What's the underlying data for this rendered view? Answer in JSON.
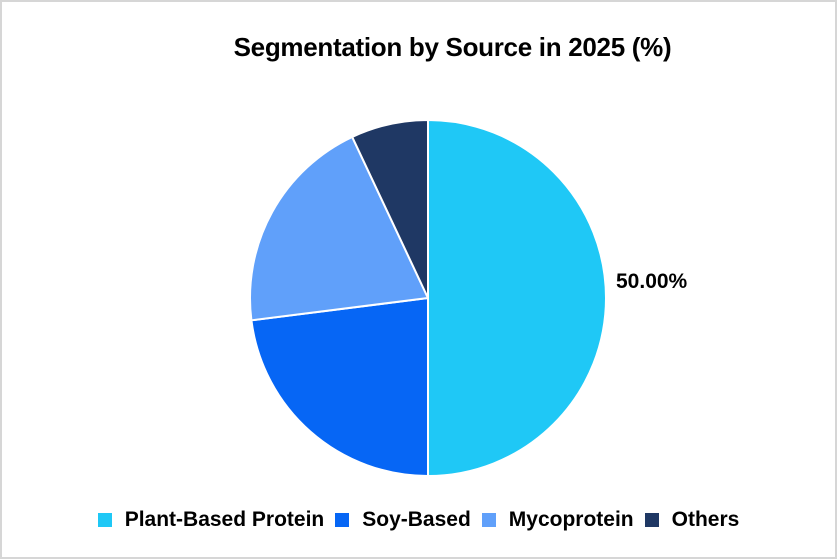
{
  "frame": {
    "background": "#FFFFFF",
    "border_color": "#D6D6D6"
  },
  "chart_data": {
    "type": "pie",
    "title": "Segmentation by Source in 2025 (%)",
    "unit": "%",
    "start_angle_deg": 0,
    "direction": "clockwise",
    "legend_position": "bottom",
    "slice_border_color": "#FFFFFF",
    "text_color": "#000000",
    "slices": [
      {
        "label": "Plant-Based Protein",
        "value": 50.0,
        "color": "#1FC8F6",
        "data_label": "50.00%"
      },
      {
        "label": "Soy-Based",
        "value": 23.0,
        "color": "#0666F5",
        "data_label": null
      },
      {
        "label": "Mycoprotein",
        "value": 20.0,
        "color": "#60A0FA",
        "data_label": null
      },
      {
        "label": "Others",
        "value": 7.0,
        "color": "#1F3864",
        "data_label": null
      }
    ]
  }
}
